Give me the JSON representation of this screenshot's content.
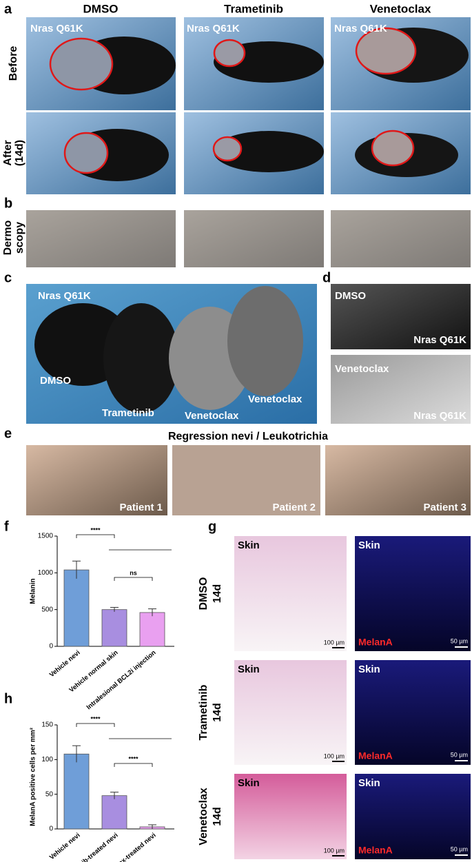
{
  "panels": {
    "a": {
      "label": "a",
      "columns": [
        "DMSO",
        "Trametinib",
        "Venetoclax"
      ],
      "rows": [
        [
          "Before"
        ],
        [
          "After",
          "(14d)"
        ]
      ],
      "overlay": "Nras Q61K"
    },
    "b": {
      "label": "b",
      "row": [
        "Dermo",
        "scopy"
      ]
    },
    "c": {
      "label": "c",
      "overlay": "Nras Q61K",
      "mice": [
        "DMSO",
        "Trametinib",
        "Venetoclax",
        "Venetoclax"
      ]
    },
    "d": {
      "label": "d",
      "images": [
        {
          "treatment": "DMSO",
          "genotype": "Nras Q61K"
        },
        {
          "treatment": "Venetoclax",
          "genotype": "Nras Q61K"
        }
      ]
    },
    "e": {
      "label": "e",
      "title": "Regression nevi / Leukotrichia",
      "patients": [
        "Patient 1",
        "Patient 2",
        "Patient 3"
      ]
    },
    "f": {
      "label": "f"
    },
    "g": {
      "label": "g",
      "rows": [
        [
          "DMSO",
          "14d"
        ],
        [
          "Trametinib",
          "14d"
        ],
        [
          "Venetoclax",
          "14d"
        ]
      ],
      "tissue": "Skin",
      "stain": "MelanA",
      "scales": [
        "100 µm",
        "50 µm"
      ]
    },
    "h": {
      "label": "h"
    }
  },
  "chart_data": [
    {
      "type": "bar",
      "ylabel": "Melanin",
      "categories": [
        "Vehicle nevi",
        "Vehicle normal skin",
        "Intralesional BCL2i injection"
      ],
      "values": [
        1040,
        500,
        460
      ],
      "errors": [
        120,
        30,
        50
      ],
      "colors": [
        "#6f9ed8",
        "#a88ee0",
        "#e9a0f0"
      ],
      "ylim": [
        0,
        1500
      ],
      "yticks": [
        0,
        500,
        1000,
        1500
      ],
      "significance": [
        "****",
        "ns"
      ]
    },
    {
      "type": "bar",
      "ylabel": "MelanA positive cells per mm²",
      "categories": [
        "Vehicle nevi",
        "Trametinib-treated nevi",
        "Venetoclax-treated nevi"
      ],
      "values": [
        108,
        48,
        3
      ],
      "errors": [
        12,
        5,
        3
      ],
      "colors": [
        "#6f9ed8",
        "#a88ee0",
        "#e9a0f0"
      ],
      "ylim": [
        0,
        150
      ],
      "yticks": [
        0,
        50,
        100,
        150
      ],
      "significance": [
        "****",
        "****"
      ]
    }
  ]
}
